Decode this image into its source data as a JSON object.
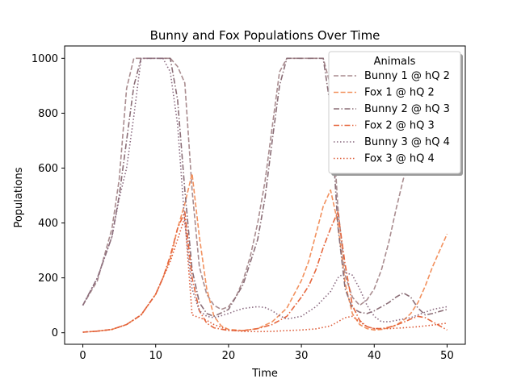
{
  "chart_data": {
    "type": "line",
    "title": "Bunny and Fox Populations Over Time",
    "xlabel": "Time",
    "ylabel": "Populations",
    "xlim": [
      -2.5,
      52.5
    ],
    "ylim": [
      -42,
      1045
    ],
    "xticks": [
      0,
      10,
      20,
      30,
      40,
      50
    ],
    "yticks": [
      0,
      200,
      400,
      600,
      800,
      1000
    ],
    "grid": false,
    "legend": {
      "title": "Animals",
      "placement": "top-right"
    },
    "series": [
      {
        "name": "Bunny 1 @ hQ 2",
        "color": "#a98c8f",
        "dash": "dashed",
        "x": [
          0,
          2,
          4,
          5,
          6,
          7,
          8,
          9,
          10,
          11,
          12,
          13,
          14,
          15,
          16,
          17,
          18,
          19,
          20,
          21,
          22,
          23,
          24,
          25,
          26,
          27,
          28,
          29,
          30,
          31,
          32,
          33,
          34,
          35,
          36,
          37,
          38,
          39,
          40,
          41,
          42,
          43,
          44,
          45
        ],
        "y": [
          100,
          190,
          380,
          560,
          890,
          1000,
          1000,
          1000,
          1000,
          1000,
          1000,
          970,
          910,
          520,
          240,
          140,
          100,
          85,
          95,
          130,
          190,
          280,
          400,
          550,
          750,
          950,
          1000,
          1000,
          1000,
          1000,
          1000,
          1000,
          900,
          460,
          210,
          130,
          100,
          120,
          160,
          230,
          330,
          450,
          560,
          640
        ]
      },
      {
        "name": "Fox 1 @ hQ 2",
        "color": "#f2915e",
        "dash": "dashed",
        "x": [
          0,
          2,
          4,
          6,
          8,
          10,
          11,
          12,
          13,
          14,
          15,
          16,
          17,
          18,
          19,
          20,
          22,
          24,
          26,
          28,
          30,
          31,
          32,
          33,
          34,
          35,
          36,
          37,
          38,
          39,
          40,
          41,
          42,
          43,
          44,
          45,
          46,
          47,
          48,
          49,
          50
        ],
        "y": [
          2,
          6,
          12,
          30,
          65,
          140,
          200,
          270,
          380,
          470,
          580,
          350,
          160,
          60,
          25,
          12,
          8,
          15,
          40,
          90,
          190,
          260,
          360,
          460,
          520,
          400,
          180,
          70,
          30,
          15,
          10,
          12,
          18,
          28,
          45,
          70,
          110,
          170,
          240,
          300,
          360
        ]
      },
      {
        "name": "Bunny 2 @ hQ 3",
        "color": "#8b6e77",
        "dash": "dashdot",
        "x": [
          0,
          2,
          4,
          5,
          6,
          7,
          8,
          9,
          10,
          11,
          12,
          13,
          14,
          15,
          16,
          17,
          18,
          20,
          22,
          24,
          25,
          26,
          27,
          28,
          29,
          30,
          31,
          32,
          33,
          34,
          35,
          36,
          37,
          38,
          39,
          40,
          41,
          42,
          43,
          44,
          45,
          46,
          47,
          48,
          49,
          50
        ],
        "y": [
          100,
          200,
          350,
          500,
          700,
          900,
          1000,
          1000,
          1000,
          1000,
          1000,
          850,
          520,
          230,
          110,
          70,
          60,
          85,
          175,
          340,
          490,
          700,
          900,
          1000,
          1000,
          1000,
          1000,
          1000,
          1000,
          820,
          390,
          160,
          90,
          75,
          70,
          80,
          95,
          110,
          130,
          145,
          130,
          90,
          65,
          70,
          78,
          85
        ]
      },
      {
        "name": "Fox 2 @ hQ 3",
        "color": "#e6663c",
        "dash": "dashdot",
        "x": [
          0,
          2,
          4,
          6,
          8,
          10,
          11,
          12,
          13,
          14,
          15,
          16,
          17,
          18,
          20,
          22,
          24,
          26,
          28,
          30,
          31,
          32,
          33,
          34,
          35,
          36,
          37,
          38,
          39,
          40,
          41,
          42,
          43,
          44,
          45,
          46,
          47,
          48,
          49,
          50
        ],
        "y": [
          2,
          6,
          12,
          30,
          65,
          140,
          200,
          280,
          380,
          440,
          200,
          80,
          35,
          18,
          8,
          8,
          15,
          30,
          60,
          130,
          170,
          230,
          310,
          380,
          440,
          250,
          100,
          45,
          22,
          15,
          15,
          20,
          28,
          38,
          50,
          60,
          55,
          40,
          25,
          10
        ]
      },
      {
        "name": "Bunny 3 @ hQ 4",
        "color": "#8a6a80",
        "dash": "dotted",
        "x": [
          0,
          2,
          4,
          5,
          6,
          7,
          8,
          9,
          10,
          11,
          12,
          13,
          14,
          15,
          16,
          17,
          18,
          19,
          20,
          21,
          22,
          23,
          24,
          25,
          26,
          27,
          28,
          30,
          32,
          34,
          35,
          36,
          37,
          38,
          39,
          40,
          41,
          42,
          43,
          44,
          45,
          46,
          47,
          48,
          49,
          50
        ],
        "y": [
          100,
          200,
          350,
          490,
          600,
          790,
          1000,
          1000,
          1000,
          1000,
          950,
          760,
          400,
          160,
          80,
          60,
          55,
          62,
          70,
          80,
          88,
          92,
          95,
          92,
          80,
          62,
          50,
          60,
          95,
          150,
          200,
          220,
          210,
          160,
          100,
          60,
          40,
          40,
          45,
          50,
          55,
          65,
          75,
          85,
          90,
          95
        ]
      },
      {
        "name": "Fox 3 @ hQ 4",
        "color": "#dd5a36",
        "dash": "dotted",
        "x": [
          0,
          2,
          4,
          6,
          8,
          10,
          11,
          12,
          13,
          14,
          15,
          16,
          17,
          18,
          20,
          22,
          24,
          26,
          28,
          30,
          32,
          34,
          35,
          36,
          37,
          38,
          39,
          40,
          42,
          44,
          46,
          48,
          50
        ],
        "y": [
          2,
          6,
          12,
          30,
          65,
          140,
          200,
          260,
          340,
          420,
          65,
          55,
          45,
          30,
          10,
          5,
          4,
          5,
          8,
          10,
          14,
          25,
          40,
          55,
          60,
          40,
          22,
          15,
          15,
          18,
          22,
          28,
          35
        ]
      }
    ]
  }
}
